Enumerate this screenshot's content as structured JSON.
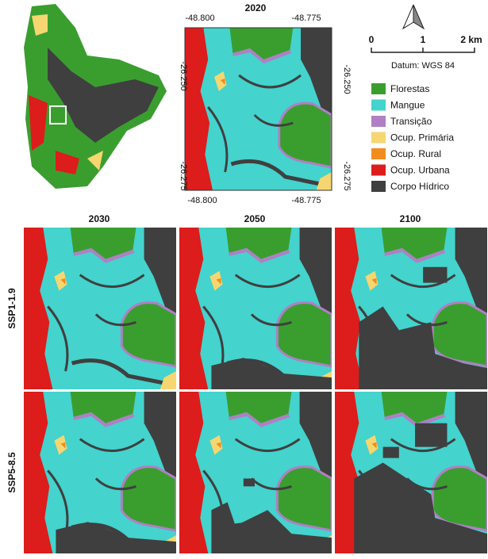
{
  "panel_2020": {
    "title": "2020",
    "top_ticks": [
      "-48.800",
      "-48.775"
    ],
    "bottom_ticks": [
      "-48.800",
      "-48.775"
    ],
    "left_ticks": [
      "-26.250",
      "-26.275"
    ],
    "right_ticks": [
      "-26.250",
      "-26.275"
    ]
  },
  "scale_bar": {
    "labels": [
      "0",
      "1",
      "2 km"
    ],
    "datum": "Datum: WGS 84"
  },
  "legend": {
    "items": [
      {
        "label": "Florestas",
        "color": "#3a9e2f"
      },
      {
        "label": "Mangue",
        "color": "#44d3cd"
      },
      {
        "label": "Transição",
        "color": "#b07fc4"
      },
      {
        "label": "Ocup. Primária",
        "color": "#f6d670"
      },
      {
        "label": "Ocup. Rural",
        "color": "#f28c1e"
      },
      {
        "label": "Ocup. Urbana",
        "color": "#dd1c1c"
      },
      {
        "label": "Corpo Hídrico",
        "color": "#3f3f3f"
      }
    ]
  },
  "columns": [
    "2030",
    "2050",
    "2100"
  ],
  "rows": [
    "SSP1-1.9",
    "SSP5-8.5"
  ]
}
